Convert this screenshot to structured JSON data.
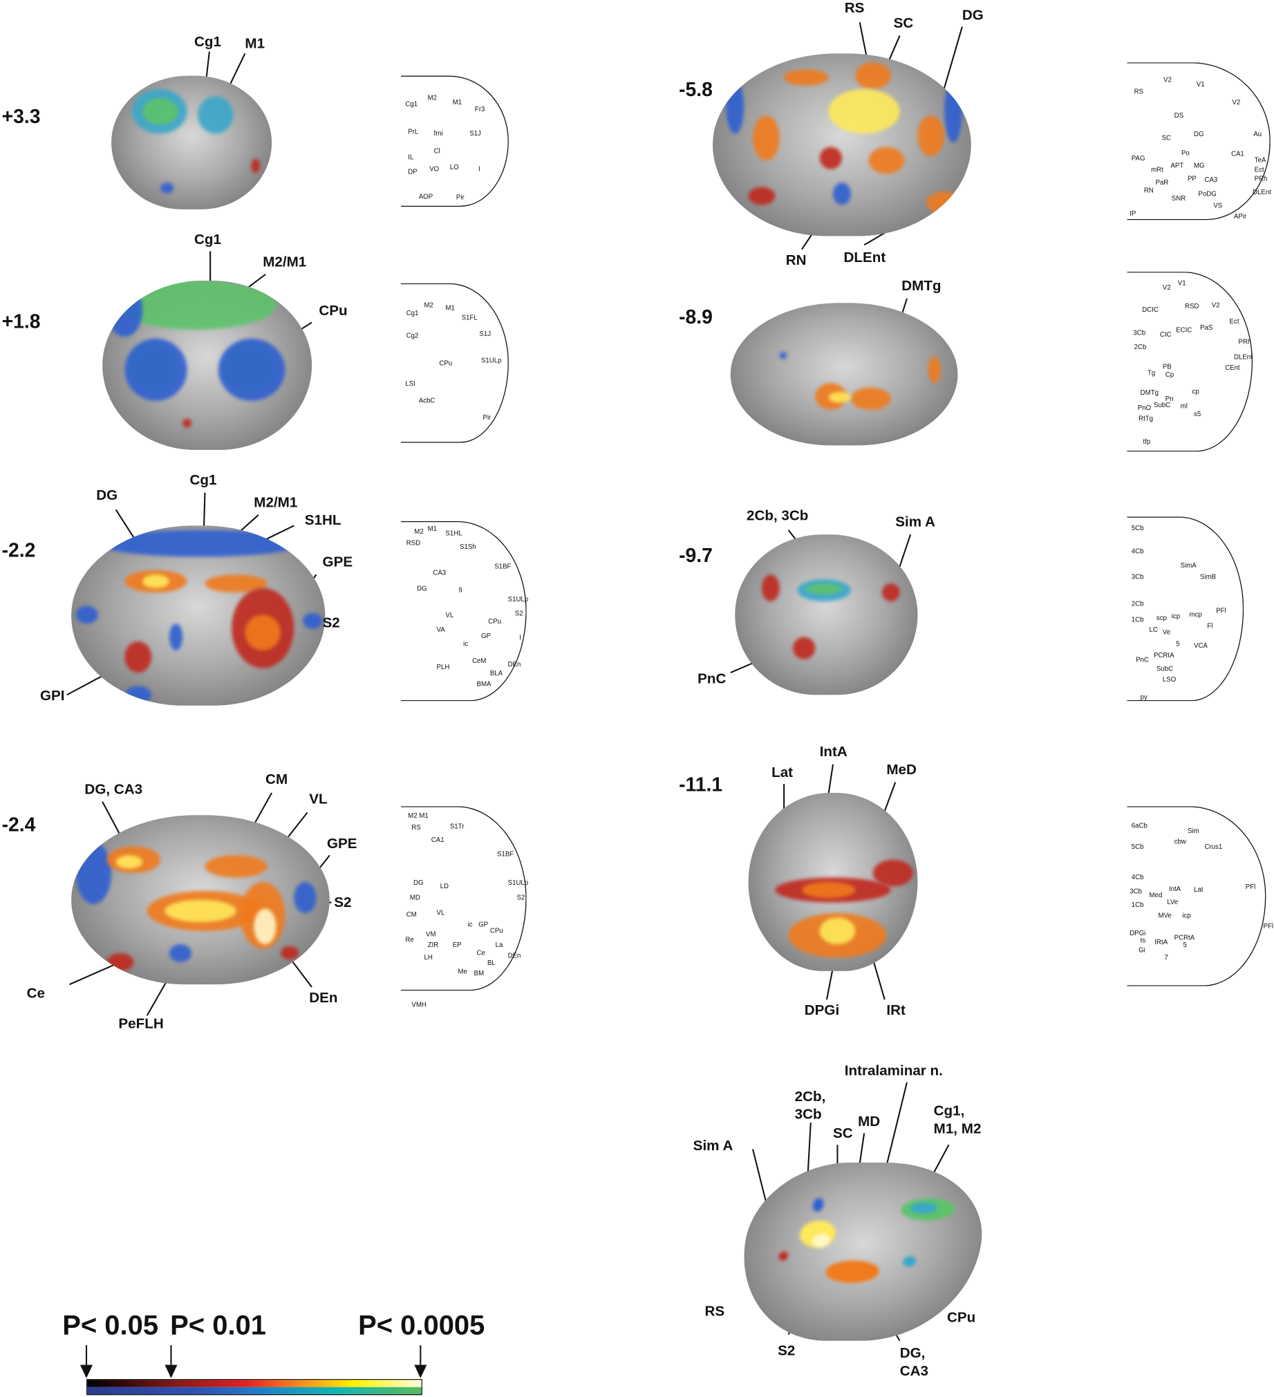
{
  "panels": [
    {
      "level": "+3.3",
      "labels": [
        "Cg1",
        "M1"
      ],
      "atlas_labels": [
        "M2",
        "M1",
        "Cg1",
        "Fr3",
        "PrL",
        "fmi",
        "S1J",
        "Cl",
        "IL",
        "VO",
        "LO",
        "I",
        "DP",
        "AOP",
        "Pir"
      ]
    },
    {
      "level": "+1.8",
      "labels": [
        "Cg1",
        "M2/M1",
        "CPu"
      ],
      "atlas_labels": [
        "Cg1",
        "M2",
        "M1",
        "S1FL",
        "Cg2",
        "S1J",
        "CPu",
        "S1ULp",
        "LSI",
        "AcbC",
        "Pir"
      ]
    },
    {
      "level": "-2.2",
      "labels": [
        "DG",
        "Cg1",
        "M2/M1",
        "S1HL",
        "GPE",
        "S2",
        "GPI"
      ],
      "atlas_labels": [
        "M2",
        "M1",
        "S1HL",
        "RSD",
        "S1Sh",
        "S1BF",
        "CA3",
        "DG",
        "fi",
        "S1ULp",
        "VL",
        "S2",
        "CPu",
        "VA",
        "ic",
        "GP",
        "I",
        "PLH",
        "CeM",
        "BLA",
        "DEn",
        "BMA"
      ]
    },
    {
      "level": "-2.4",
      "labels": [
        "DG, CA3",
        "CM",
        "VL",
        "GPE",
        "S2",
        "Ce",
        "PeFLH",
        "DEn"
      ],
      "atlas_labels": [
        "M2 M1",
        "S1Tr",
        "RS",
        "S1BF",
        "CA1",
        "LD",
        "DG",
        "MD",
        "S1ULp",
        "VL",
        "S2",
        "CM",
        "ic",
        "GP",
        "CPu",
        "Re",
        "VM",
        "ZIR",
        "EP",
        "Ce",
        "La",
        "DEn",
        "LH",
        "BL",
        "Me",
        "BM",
        "VMH"
      ]
    },
    {
      "level": "-5.8",
      "labels": [
        "RS",
        "SC",
        "DG",
        "RN",
        "DLEnt"
      ],
      "atlas_labels": [
        "RS",
        "V2",
        "V1",
        "V2",
        "Au",
        "DS",
        "DG",
        "SC",
        "PAG",
        "Po",
        "mRt",
        "APT",
        "MG",
        "CA1",
        "TeA",
        "Ect",
        "PRh",
        "PaR",
        "PP",
        "CA3",
        "RN",
        "SNR",
        "PoDG",
        "DLEnt",
        "VS",
        "APir",
        "IP"
      ]
    },
    {
      "level": "-8.9",
      "labels": [
        "DMTg"
      ],
      "atlas_labels": [
        "V2",
        "V1",
        "RSD",
        "V2",
        "DCIC",
        "Ect",
        "3Cb",
        "CIC",
        "ECIC",
        "PaS",
        "2Cb",
        "PRh",
        "PB",
        "Tg",
        "Cp",
        "DLEnt",
        "CEnt",
        "DMTg",
        "cp",
        "Pn",
        "SubC",
        "ml",
        "PnO",
        "RtTg",
        "s5",
        "tfp"
      ]
    },
    {
      "level": "-9.7",
      "labels": [
        "2Cb, 3Cb",
        "Sim A",
        "PnC"
      ],
      "atlas_labels": [
        "5Cb",
        "4Cb",
        "3Cb",
        "SimA",
        "SimB",
        "2Cb",
        "PFl",
        "1Cb",
        "scp",
        "icp",
        "mcp",
        "Fl",
        "LC",
        "Ve",
        "5",
        "PnC",
        "PCRtA",
        "VCA",
        "SubC",
        "LSO",
        "py"
      ]
    },
    {
      "level": "-11.1",
      "labels": [
        "Lat",
        "IntA",
        "MeD",
        "DPGi",
        "IRt"
      ],
      "atlas_labels": [
        "6aCb",
        "Sim",
        "5Cb",
        "cbw",
        "Crus1",
        "4Cb",
        "PFl",
        "3Cb",
        "Med",
        "IntA",
        "Lat",
        "1Cb",
        "LVe",
        "icp",
        "MVe",
        "PFl",
        "DPGi",
        "ts",
        "IRtA",
        "PCRtA",
        "5",
        "Gi",
        "7"
      ]
    }
  ],
  "reconstruction_3d": {
    "labels": [
      "Intralaminar n.",
      "2Cb,\n3Cb",
      "SC",
      "MD",
      "Cg1,\nM1, M2",
      "Sim A",
      "RS",
      "S2",
      "DG,\nCA3",
      "CPu"
    ]
  },
  "colorbar": {
    "thresholds": [
      "P< 0.05",
      "P< 0.01",
      "P< 0.0005"
    ],
    "hot_colors": [
      "#000000",
      "#8b1a1a",
      "#e52320",
      "#f7931e",
      "#fff200",
      "#fffbe0"
    ],
    "cold_colors": [
      "#2b3b8f",
      "#1e88c8",
      "#13b6b0",
      "#5cb85c"
    ]
  }
}
